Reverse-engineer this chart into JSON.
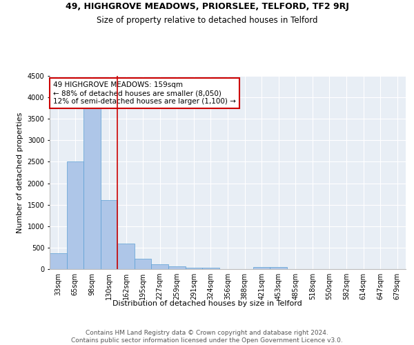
{
  "title1": "49, HIGHGROVE MEADOWS, PRIORSLEE, TELFORD, TF2 9RJ",
  "title2": "Size of property relative to detached houses in Telford",
  "xlabel": "Distribution of detached houses by size in Telford",
  "ylabel": "Number of detached properties",
  "categories": [
    "33sqm",
    "65sqm",
    "98sqm",
    "130sqm",
    "162sqm",
    "195sqm",
    "227sqm",
    "259sqm",
    "291sqm",
    "324sqm",
    "356sqm",
    "388sqm",
    "421sqm",
    "453sqm",
    "485sqm",
    "518sqm",
    "550sqm",
    "582sqm",
    "614sqm",
    "647sqm",
    "679sqm"
  ],
  "values": [
    375,
    2500,
    3750,
    1600,
    600,
    240,
    105,
    60,
    40,
    40,
    0,
    0,
    55,
    55,
    0,
    0,
    0,
    0,
    0,
    0,
    0
  ],
  "bar_color": "#aec6e8",
  "bar_edge_color": "#5a9fd4",
  "redline_index": 3.5,
  "annotation_text": "49 HIGHGROVE MEADOWS: 159sqm\n← 88% of detached houses are smaller (8,050)\n12% of semi-detached houses are larger (1,100) →",
  "annotation_box_color": "#ffffff",
  "annotation_box_edge": "#cc0000",
  "redline_color": "#cc0000",
  "ylim": [
    0,
    4500
  ],
  "yticks": [
    0,
    500,
    1000,
    1500,
    2000,
    2500,
    3000,
    3500,
    4000,
    4500
  ],
  "footer_text": "Contains HM Land Registry data © Crown copyright and database right 2024.\nContains public sector information licensed under the Open Government Licence v3.0.",
  "background_color": "#e8eef5",
  "grid_color": "#ffffff",
  "title1_fontsize": 9,
  "title2_fontsize": 8.5,
  "xlabel_fontsize": 8,
  "ylabel_fontsize": 8,
  "tick_fontsize": 7,
  "annotation_fontsize": 7.5,
  "footer_fontsize": 6.5
}
